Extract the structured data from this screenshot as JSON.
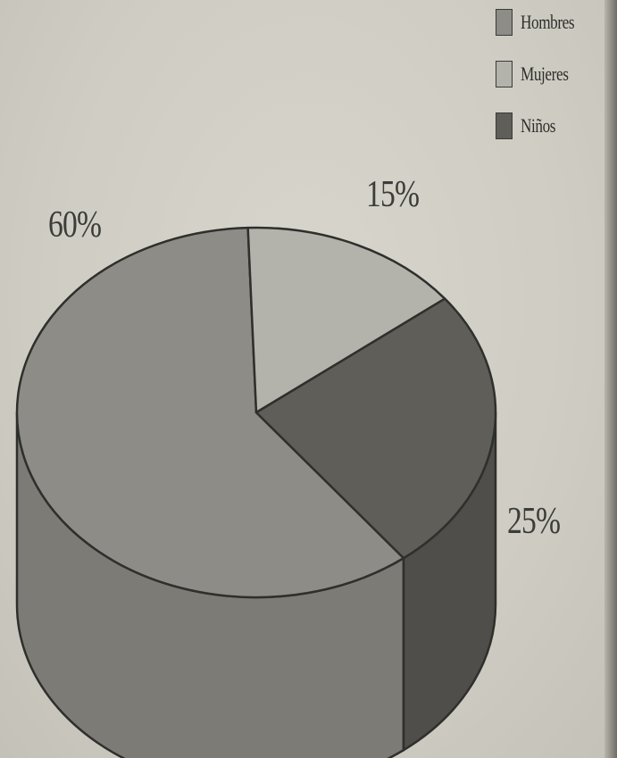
{
  "chart_data": {
    "type": "pie",
    "style": "3d-cylinder",
    "categories": [
      "Hombres",
      "Mujeres",
      "Niños"
    ],
    "values": [
      60,
      15,
      25
    ],
    "unit": "%",
    "data_labels": [
      "60%",
      "15%",
      "25%"
    ],
    "colors": [
      "#8d8c86",
      "#b3b2ab",
      "#5f5e59"
    ],
    "side_colors": [
      "#7c7b76",
      "#9e9d96",
      "#4f4e4a"
    ],
    "legend": {
      "entries": [
        "Hombres",
        "Mujeres",
        "Niños"
      ],
      "placement": "top-right"
    },
    "title": "",
    "xlabel": "",
    "ylabel": ""
  }
}
